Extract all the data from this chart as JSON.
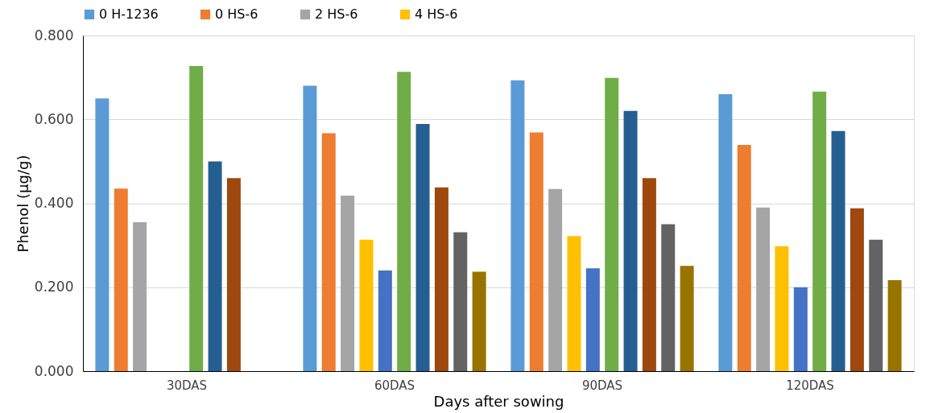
{
  "chart_data": {
    "type": "bar",
    "xlabel": "Days after sowing",
    "ylabel": "Phenol (µg/g)",
    "categories": [
      "30DAS",
      "60DAS",
      "90DAS",
      "120DAS"
    ],
    "series": [
      {
        "name": "0 H-1236",
        "color": "#5b9bd5",
        "values": [
          0.65,
          0.68,
          0.693,
          0.66
        ]
      },
      {
        "name": "0 HS-6",
        "color": "#ed7d31",
        "values": [
          0.435,
          0.567,
          0.569,
          0.539
        ]
      },
      {
        "name": "2 HS-6",
        "color": "#a5a5a5",
        "values": [
          0.355,
          0.418,
          0.434,
          0.39
        ]
      },
      {
        "name": "4 HS-6",
        "color": "#ffc000",
        "values": [
          null,
          0.313,
          0.322,
          0.298
        ]
      },
      {
        "color": "#4472c4",
        "values": [
          null,
          0.24,
          0.245,
          0.2
        ]
      },
      {
        "color": "#70ad47",
        "values": [
          0.727,
          0.713,
          0.699,
          0.666
        ]
      },
      {
        "color": "#255e91",
        "values": [
          0.5,
          0.589,
          0.62,
          0.572
        ]
      },
      {
        "color": "#9e480e",
        "values": [
          0.46,
          0.438,
          0.46,
          0.388
        ]
      },
      {
        "color": "#636363",
        "values": [
          null,
          0.331,
          0.35,
          0.313
        ]
      },
      {
        "color": "#997300",
        "values": [
          null,
          0.237,
          0.251,
          0.217
        ]
      }
    ],
    "ylim": [
      0,
      0.8
    ],
    "yticks": [
      {
        "value": 0,
        "label": "0.000"
      },
      {
        "value": 0.2,
        "label": "0.200"
      },
      {
        "value": 0.4,
        "label": "0.400"
      },
      {
        "value": 0.6,
        "label": "0.600"
      },
      {
        "value": 0.8,
        "label": "0.800"
      }
    ],
    "grid": "y",
    "legend": "top"
  }
}
